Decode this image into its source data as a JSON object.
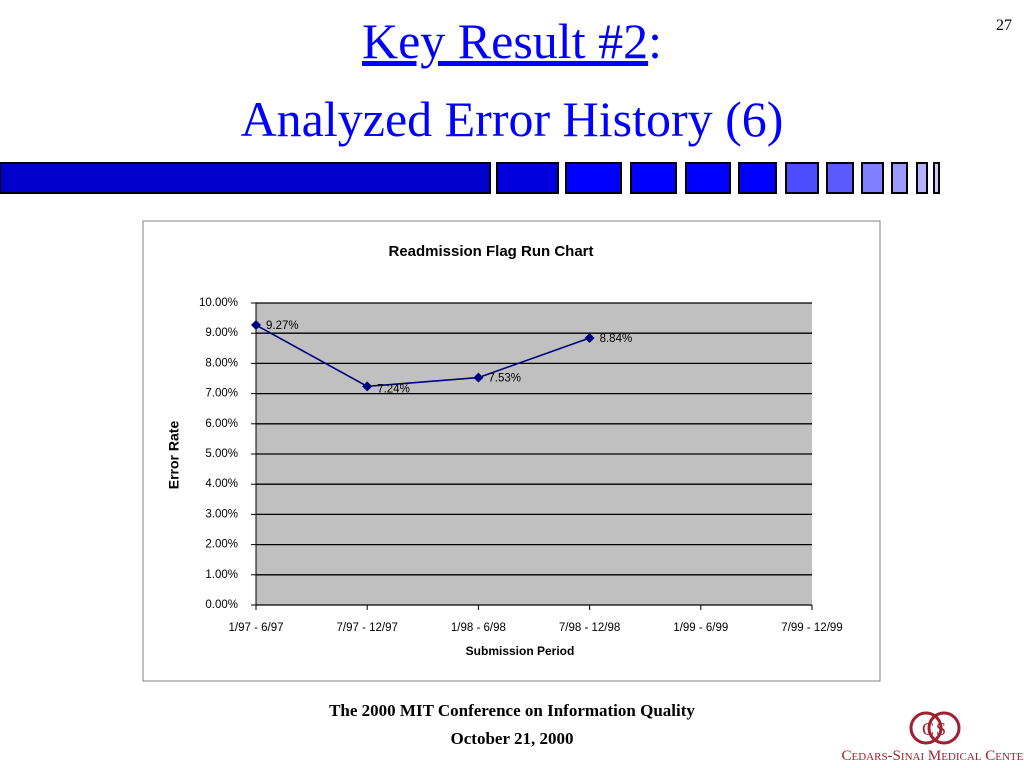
{
  "slide": {
    "title_line1": {
      "link": "Key Result #2",
      "suffix": ":"
    },
    "title_line2": "Analyzed Error History (6)",
    "page_number": "27",
    "footer": [
      "The 2000 MIT Conference on Information Quality",
      "October 21, 2000"
    ],
    "logo_mark": "CS",
    "logo_text": "Cedars-Sinai Medical Center."
  },
  "chart_data": {
    "type": "line",
    "title": "Readmission Flag Run Chart",
    "x_label": "Submission Period",
    "y_label": "Error Rate",
    "categories": [
      "1/97 - 6/97",
      "7/97 - 12/97",
      "1/98 - 6/98",
      "7/98 - 12/98",
      "1/99 - 6/99",
      "7/99 - 12/99"
    ],
    "values": [
      9.27,
      7.24,
      7.53,
      8.84,
      null,
      null
    ],
    "value_labels": [
      "9.27%",
      "7.24%",
      "7.53%",
      "8.84%",
      null,
      null
    ],
    "color": "#000080",
    "ylim": [
      0,
      10
    ],
    "yticks": [
      {
        "value": 0,
        "label": "0.00%"
      },
      {
        "value": 1,
        "label": "1.00%"
      },
      {
        "value": 2,
        "label": "2.00%"
      },
      {
        "value": 3,
        "label": "3.00%"
      },
      {
        "value": 4,
        "label": "4.00%"
      },
      {
        "value": 5,
        "label": "5.00%"
      },
      {
        "value": 6,
        "label": "6.00%"
      },
      {
        "value": 7,
        "label": "7.00%"
      },
      {
        "value": 8,
        "label": "8.00%"
      },
      {
        "value": 9,
        "label": "9.00%"
      },
      {
        "value": 10,
        "label": "10.00%"
      }
    ],
    "grid": true
  }
}
